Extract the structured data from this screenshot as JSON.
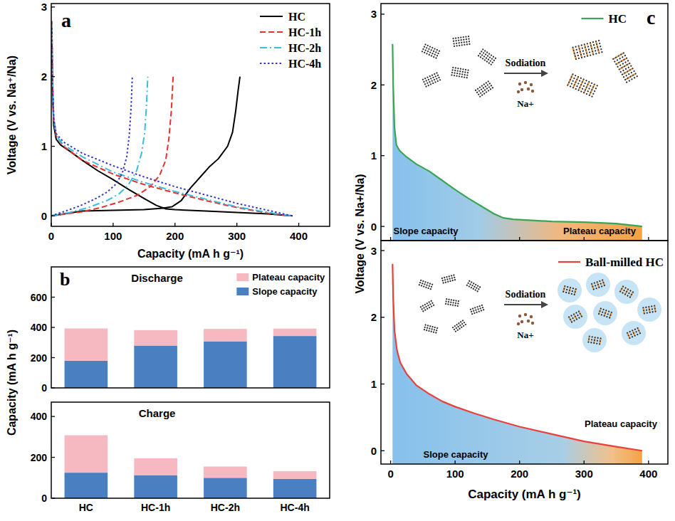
{
  "chart_data": [
    {
      "type": "line",
      "panel": "a",
      "x_label": "Capacity (mA h g⁻¹)",
      "y_label": "Voltage (V vs. Na⁺/Na)",
      "xlim": [
        0,
        450
      ],
      "ylim": [
        -0.15,
        3.05
      ],
      "xticks": [
        0,
        100,
        200,
        300,
        400
      ],
      "yticks": [
        0,
        1,
        2,
        3
      ],
      "legend": "upper right",
      "series": [
        {
          "name": "HC",
          "color": "#000000",
          "line_style": "solid",
          "x": [
            1,
            2,
            4,
            8,
            15,
            30,
            50,
            75,
            100,
            125,
            150,
            170,
            185,
            200,
            250,
            300,
            350,
            390,
            390,
            0,
            50,
            100,
            150,
            180,
            195,
            210,
            225,
            240,
            255,
            270,
            285,
            293,
            298,
            302,
            305
          ],
          "values": [
            2.55,
            1.8,
            1.3,
            1.1,
            1.02,
            0.93,
            0.8,
            0.65,
            0.52,
            0.38,
            0.25,
            0.15,
            0.1,
            0.09,
            0.07,
            0.05,
            0.03,
            0.0,
            null,
            0.0,
            0.07,
            0.08,
            0.09,
            0.11,
            0.13,
            0.22,
            0.4,
            0.55,
            0.7,
            0.82,
            1.0,
            1.2,
            1.5,
            1.8,
            2.0
          ]
        },
        {
          "name": "HC-1h",
          "color": "#e8312f",
          "line_style": "dashed",
          "x": [
            1,
            2,
            4,
            8,
            20,
            50,
            100,
            150,
            200,
            250,
            300,
            350,
            385,
            385,
            0,
            25,
            50,
            80,
            110,
            140,
            160,
            175,
            185,
            190,
            194,
            197
          ],
          "values": [
            2.8,
            2.0,
            1.4,
            1.15,
            1.0,
            0.8,
            0.6,
            0.45,
            0.33,
            0.22,
            0.12,
            0.04,
            0.0,
            null,
            0.0,
            0.03,
            0.06,
            0.12,
            0.2,
            0.3,
            0.42,
            0.58,
            0.8,
            1.1,
            1.5,
            2.0
          ]
        },
        {
          "name": "HC-2h",
          "color": "#3cbde0",
          "line_style": "dashdot",
          "x": [
            1,
            2,
            4,
            8,
            20,
            50,
            100,
            150,
            200,
            250,
            300,
            350,
            390,
            390,
            0,
            30,
            60,
            90,
            110,
            125,
            138,
            146,
            151,
            154,
            156
          ],
          "values": [
            2.75,
            1.9,
            1.4,
            1.15,
            1.02,
            0.85,
            0.63,
            0.48,
            0.35,
            0.24,
            0.13,
            0.05,
            0.0,
            null,
            0.0,
            0.05,
            0.12,
            0.22,
            0.32,
            0.45,
            0.65,
            0.9,
            1.2,
            1.6,
            2.0
          ]
        },
        {
          "name": "HC-4h",
          "color": "#3636c8",
          "line_style": "dotted",
          "x": [
            1,
            2,
            4,
            8,
            20,
            50,
            100,
            150,
            200,
            250,
            300,
            350,
            390,
            390,
            0,
            20,
            45,
            70,
            90,
            105,
            115,
            122,
            126,
            129,
            131
          ],
          "values": [
            2.7,
            1.9,
            1.4,
            1.18,
            1.06,
            0.9,
            0.72,
            0.56,
            0.42,
            0.3,
            0.18,
            0.08,
            0.0,
            null,
            0.0,
            0.06,
            0.14,
            0.24,
            0.34,
            0.46,
            0.62,
            0.85,
            1.15,
            1.55,
            2.0
          ]
        }
      ]
    },
    {
      "type": "bar",
      "panel": "b",
      "title": "Discharge",
      "stacked": true,
      "y_label": "Capacity (mA h g⁻¹)",
      "categories": [
        "HC",
        "HC-1h",
        "HC-2h",
        "HC-4h"
      ],
      "ylim": [
        0,
        800
      ],
      "yticks": [
        0,
        200,
        400,
        600
      ],
      "tick_labels": "y",
      "legend": "upper right",
      "series": [
        {
          "name": "Slope capacity",
          "color": "#4a7fc1",
          "values": [
            180,
            280,
            308,
            343
          ]
        },
        {
          "name": "Plateau capacity",
          "color": "#f7b9c1",
          "values": [
            213,
            102,
            82,
            49
          ]
        }
      ]
    },
    {
      "type": "bar",
      "title": "Charge",
      "stacked": true,
      "categories": [
        "HC",
        "HC-1h",
        "HC-2h",
        "HC-4h"
      ],
      "ylim": [
        0,
        470
      ],
      "yticks": [
        0,
        200,
        400
      ],
      "series": [
        {
          "color": "#4a7fc1",
          "values": [
            125,
            113,
            100,
            95
          ]
        },
        {
          "color": "#f7b9c1",
          "values": [
            183,
            82,
            55,
            37
          ]
        }
      ]
    },
    {
      "type": "line",
      "panel": "c",
      "y_label": "Voltage (V vs. Na+/Na)",
      "xlim": [
        -15,
        430
      ],
      "ylim": [
        -0.2,
        3.15
      ],
      "xticks": [
        0,
        100,
        200,
        300,
        400
      ],
      "yticks": [
        0,
        1,
        2,
        3
      ],
      "tick_labels": "y",
      "legend": "upper right",
      "series": [
        {
          "name": "HC",
          "color": "#3aa655",
          "x": [
            3,
            4,
            6,
            9,
            14,
            25,
            40,
            60,
            80,
            100,
            120,
            140,
            160,
            175,
            190,
            210,
            250,
            300,
            350,
            390
          ],
          "values": [
            2.58,
            2.0,
            1.4,
            1.15,
            1.07,
            0.98,
            0.88,
            0.78,
            0.65,
            0.52,
            0.4,
            0.29,
            0.18,
            0.12,
            0.1,
            0.09,
            0.07,
            0.06,
            0.04,
            0.0
          ]
        }
      ],
      "annotations": [
        {
          "text": "Sodiation"
        },
        {
          "text": "Na+"
        },
        {
          "text": "Slope capacity"
        },
        {
          "text": "Plateau capacity"
        }
      ]
    },
    {
      "type": "line",
      "x_label": "Capacity (mA h g⁻¹)",
      "xlim": [
        -15,
        430
      ],
      "ylim": [
        -0.2,
        3.15
      ],
      "xticks": [
        0,
        100,
        200,
        300,
        400
      ],
      "yticks": [
        0,
        1,
        2,
        3
      ],
      "legend": "upper right",
      "series": [
        {
          "name": "Ball-milled HC",
          "color": "#e8413c",
          "x": [
            3,
            4,
            6,
            10,
            15,
            25,
            40,
            60,
            80,
            100,
            130,
            160,
            200,
            250,
            300,
            350,
            390
          ],
          "values": [
            2.8,
            2.3,
            1.8,
            1.5,
            1.32,
            1.15,
            0.98,
            0.85,
            0.74,
            0.66,
            0.56,
            0.47,
            0.36,
            0.25,
            0.14,
            0.06,
            0.0
          ]
        }
      ],
      "annotations": [
        {
          "text": "Sodiation"
        },
        {
          "text": "Na+"
        },
        {
          "text": "Slope capacity"
        },
        {
          "text": "Plateau capacity"
        }
      ]
    }
  ]
}
